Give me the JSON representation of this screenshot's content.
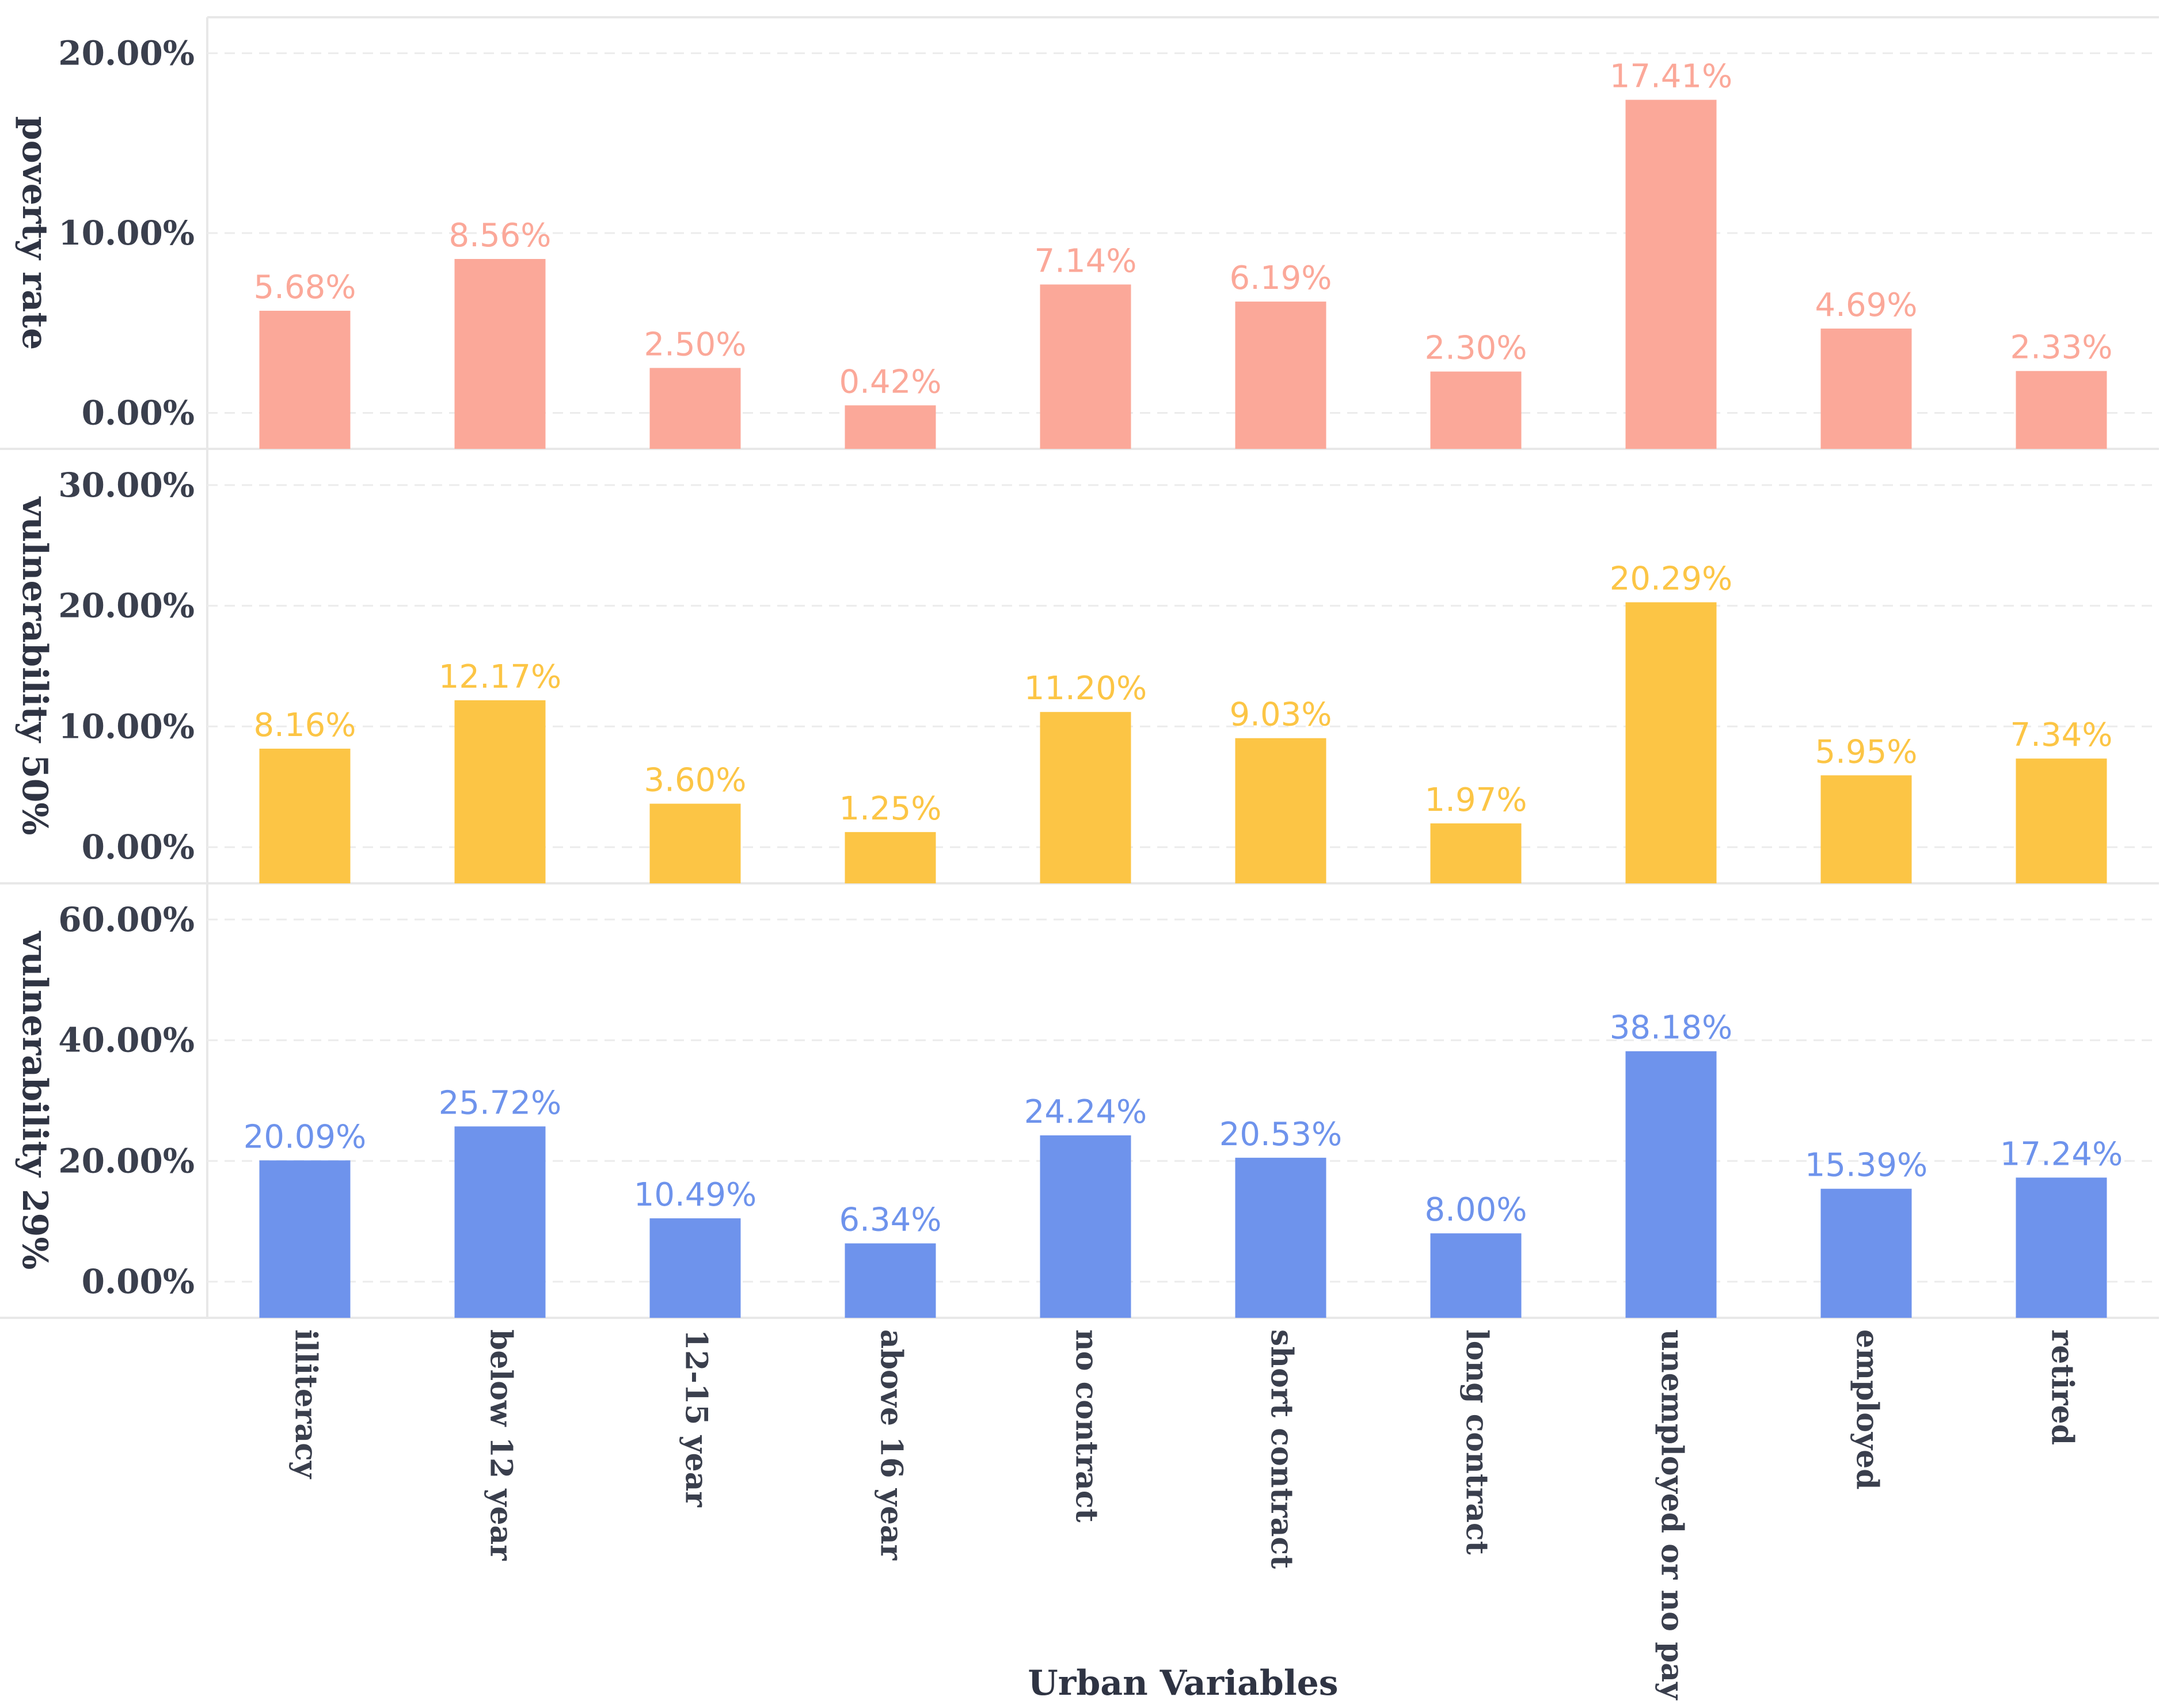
{
  "chart_data": {
    "type": "bar",
    "xlabel": "Urban Variables",
    "categories": [
      "illiteracy",
      "below 12 year",
      "12-15 year",
      "above 16 year",
      "no contract",
      "short contract",
      "long contract",
      "unemployed or no pay",
      "employed",
      "retired"
    ],
    "panels": [
      {
        "ylabel": "poverty rate",
        "color": "#fba899",
        "ylim": [
          -2,
          22
        ],
        "yticks": [
          0,
          10,
          20
        ],
        "ytick_labels": [
          "0.00%",
          "10.00%",
          "20.00%"
        ],
        "values": [
          5.68,
          8.56,
          2.5,
          0.42,
          7.14,
          6.19,
          2.3,
          17.41,
          4.69,
          2.33
        ],
        "value_labels": [
          "5.68%",
          "8.56%",
          "2.50%",
          "0.42%",
          "7.14%",
          "6.19%",
          "2.30%",
          "17.41%",
          "4.69%",
          "2.33%"
        ]
      },
      {
        "ylabel": "vulnerability 50%",
        "color": "#fcc545",
        "ylim": [
          -3,
          33
        ],
        "yticks": [
          0,
          10,
          20,
          30
        ],
        "ytick_labels": [
          "0.00%",
          "10.00%",
          "20.00%",
          "30.00%"
        ],
        "values": [
          8.16,
          12.17,
          3.6,
          1.25,
          11.2,
          9.03,
          1.97,
          20.29,
          5.95,
          7.34
        ],
        "value_labels": [
          "8.16%",
          "12.17%",
          "3.60%",
          "1.25%",
          "11.20%",
          "9.03%",
          "1.97%",
          "20.29%",
          "5.95%",
          "7.34%"
        ]
      },
      {
        "ylabel": "vulnerability 29%",
        "color": "#6e93ec",
        "ylim": [
          -6,
          66
        ],
        "yticks": [
          0,
          20,
          40,
          60
        ],
        "ytick_labels": [
          "0.00%",
          "20.00%",
          "40.00%",
          "60.00%"
        ],
        "values": [
          20.09,
          25.72,
          10.49,
          6.34,
          24.24,
          20.53,
          8.0,
          38.18,
          15.39,
          17.24
        ],
        "value_labels": [
          "20.09%",
          "25.72%",
          "10.49%",
          "6.34%",
          "24.24%",
          "20.53%",
          "8.00%",
          "38.18%",
          "15.39%",
          "17.24%"
        ]
      }
    ]
  }
}
